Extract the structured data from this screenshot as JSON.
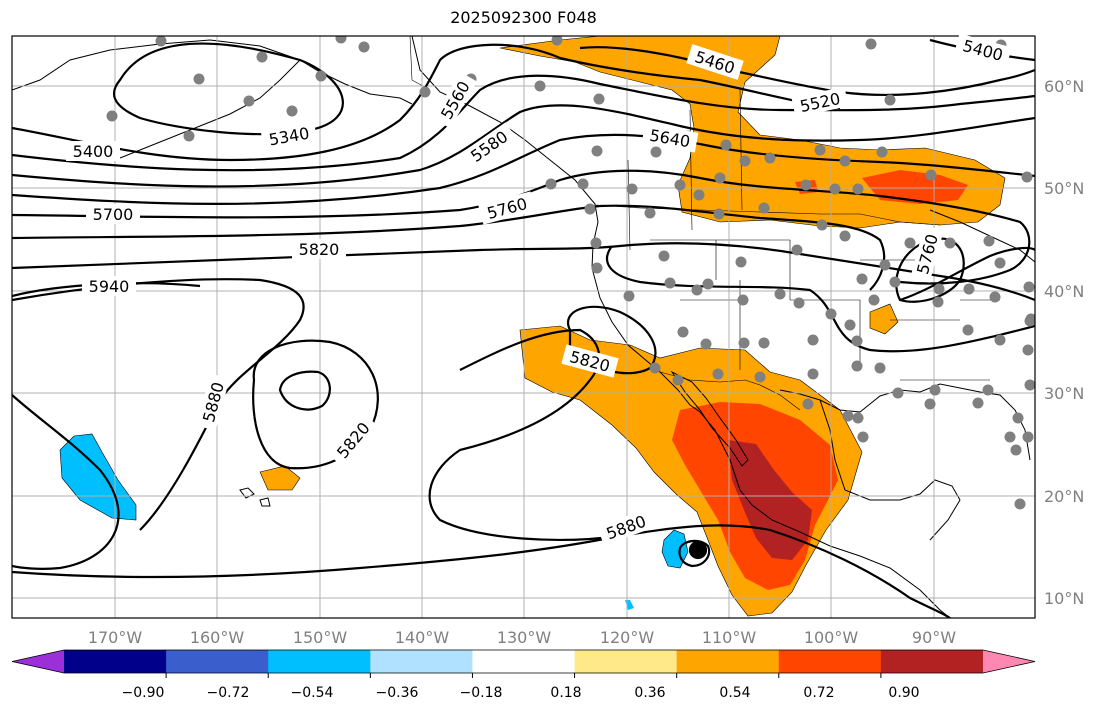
{
  "title": "2025092300 F048",
  "longitude_labels": [
    "170°W",
    "160°W",
    "150°W",
    "140°W",
    "130°W",
    "120°W",
    "110°W",
    "100°W",
    "90°W"
  ],
  "latitude_labels": [
    "60°N",
    "50°N",
    "40°N",
    "30°N",
    "20°N",
    "10°N"
  ],
  "contour_labels": [
    "5400",
    "5340",
    "5460",
    "5520",
    "5560",
    "5580",
    "5640",
    "5700",
    "5760",
    "5760",
    "5820",
    "5820",
    "5820",
    "5880",
    "5880",
    "5940",
    "5400"
  ],
  "colorbar": {
    "ticks": [
      "−0.90",
      "−0.72",
      "−0.54",
      "−0.36",
      "−0.18",
      "0.18",
      "0.36",
      "0.54",
      "0.72",
      "0.90"
    ],
    "colors": [
      "#9b30d9",
      "#00008b",
      "#3a5fcd",
      "#00bfff",
      "#b0e2ff",
      "#ffffff",
      "#ffe989",
      "#ffa500",
      "#ff4500",
      "#b22222",
      "#ff88b3"
    ]
  },
  "station_marker_color": "#808080"
}
